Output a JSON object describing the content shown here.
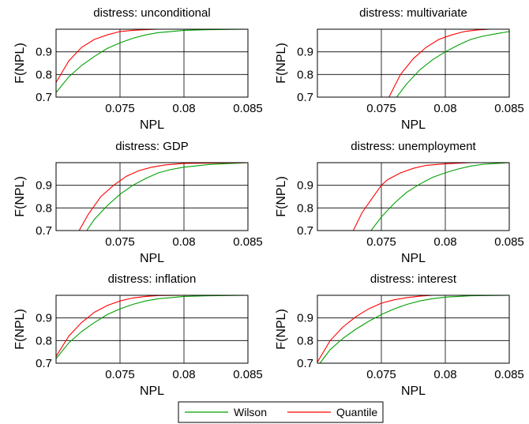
{
  "colors": {
    "wilson": "#00a000",
    "quantile": "#ff0000",
    "grid": "#000000",
    "frame": "#000000"
  },
  "legend": {
    "placement": "bottom-center",
    "items": [
      "Wilson",
      "Quantile"
    ]
  },
  "chart_data": [
    {
      "type": "line",
      "title": "distress: unconditional",
      "xlabel": "NPL",
      "ylabel": "F(NPL)",
      "xlim": [
        0.07,
        0.085
      ],
      "ylim": [
        0.7,
        1.0
      ],
      "xticks": [
        "0.075",
        "0.08",
        "0.085"
      ],
      "yticks": [
        "0.7",
        "0.8",
        "0.9"
      ],
      "grid": true,
      "series": [
        {
          "name": "Wilson",
          "x": [
            0.07,
            0.071,
            0.072,
            0.073,
            0.074,
            0.075,
            0.076,
            0.077,
            0.078,
            0.079,
            0.08,
            0.082,
            0.085
          ],
          "y": [
            0.72,
            0.79,
            0.84,
            0.88,
            0.915,
            0.94,
            0.96,
            0.975,
            0.985,
            0.99,
            0.995,
            0.998,
            1.0
          ]
        },
        {
          "name": "Quantile",
          "x": [
            0.07,
            0.071,
            0.072,
            0.073,
            0.074,
            0.075,
            0.076,
            0.077,
            0.078,
            0.079,
            0.08,
            0.085
          ],
          "y": [
            0.765,
            0.86,
            0.92,
            0.955,
            0.975,
            0.99,
            0.995,
            0.998,
            1.0,
            1.0,
            1.0,
            1.0
          ]
        }
      ]
    },
    {
      "type": "line",
      "title": "distress: multivariate",
      "xlabel": "NPL",
      "ylabel": "F(NPL)",
      "xlim": [
        0.07,
        0.085
      ],
      "ylim": [
        0.7,
        1.0
      ],
      "xticks": [
        "0.075",
        "0.08",
        "0.085"
      ],
      "yticks": [
        "0.7",
        "0.8",
        "0.9"
      ],
      "grid": true,
      "series": [
        {
          "name": "Wilson",
          "x": [
            0.0762,
            0.077,
            0.078,
            0.079,
            0.08,
            0.081,
            0.082,
            0.083,
            0.084,
            0.085
          ],
          "y": [
            0.7,
            0.76,
            0.82,
            0.865,
            0.9,
            0.93,
            0.955,
            0.97,
            0.98,
            0.99
          ]
        },
        {
          "name": "Quantile",
          "x": [
            0.0756,
            0.0765,
            0.0775,
            0.0785,
            0.0795,
            0.0805,
            0.0815,
            0.0825,
            0.0835,
            0.085
          ],
          "y": [
            0.7,
            0.8,
            0.87,
            0.92,
            0.955,
            0.975,
            0.99,
            0.997,
            1.0,
            1.0
          ]
        }
      ]
    },
    {
      "type": "line",
      "title": "distress: GDP",
      "xlabel": "NPL",
      "ylabel": "F(NPL)",
      "xlim": [
        0.07,
        0.085
      ],
      "ylim": [
        0.7,
        1.0
      ],
      "xticks": [
        "0.075",
        "0.08",
        "0.085"
      ],
      "yticks": [
        "0.7",
        "0.8",
        "0.9"
      ],
      "grid": true,
      "series": [
        {
          "name": "Wilson",
          "x": [
            0.0724,
            0.073,
            0.074,
            0.075,
            0.076,
            0.077,
            0.078,
            0.079,
            0.08,
            0.082,
            0.085
          ],
          "y": [
            0.7,
            0.75,
            0.81,
            0.86,
            0.9,
            0.93,
            0.955,
            0.97,
            0.98,
            0.992,
            1.0
          ]
        },
        {
          "name": "Quantile",
          "x": [
            0.0718,
            0.0725,
            0.0735,
            0.0745,
            0.0755,
            0.0765,
            0.0775,
            0.0785,
            0.08,
            0.085
          ],
          "y": [
            0.7,
            0.77,
            0.85,
            0.9,
            0.94,
            0.965,
            0.98,
            0.99,
            0.997,
            1.0
          ]
        }
      ]
    },
    {
      "type": "line",
      "title": "distress: unemployment",
      "xlabel": "NPL",
      "ylabel": "F(NPL)",
      "xlim": [
        0.07,
        0.085
      ],
      "ylim": [
        0.7,
        1.0
      ],
      "xticks": [
        "0.075",
        "0.08",
        "0.085"
      ],
      "yticks": [
        "0.7",
        "0.8",
        "0.9"
      ],
      "grid": true,
      "series": [
        {
          "name": "Wilson",
          "x": [
            0.0742,
            0.075,
            0.076,
            0.077,
            0.078,
            0.079,
            0.08,
            0.081,
            0.082,
            0.083,
            0.085
          ],
          "y": [
            0.7,
            0.76,
            0.82,
            0.87,
            0.905,
            0.935,
            0.955,
            0.972,
            0.985,
            0.993,
            1.0
          ]
        },
        {
          "name": "Quantile",
          "x": [
            0.0728,
            0.0735,
            0.0745,
            0.075,
            0.0755,
            0.0765,
            0.0775,
            0.0785,
            0.08,
            0.082,
            0.085
          ],
          "y": [
            0.7,
            0.78,
            0.86,
            0.9,
            0.925,
            0.955,
            0.975,
            0.988,
            0.995,
            1.0,
            1.0
          ]
        }
      ]
    },
    {
      "type": "line",
      "title": "distress: inflation",
      "xlabel": "NPL",
      "ylabel": "F(NPL)",
      "xlim": [
        0.07,
        0.085
      ],
      "ylim": [
        0.7,
        1.0
      ],
      "xticks": [
        "0.075",
        "0.08",
        "0.085"
      ],
      "yticks": [
        "0.7",
        "0.8",
        "0.9"
      ],
      "grid": true,
      "series": [
        {
          "name": "Wilson",
          "x": [
            0.07,
            0.071,
            0.072,
            0.073,
            0.074,
            0.075,
            0.076,
            0.077,
            0.078,
            0.079,
            0.08,
            0.082,
            0.085
          ],
          "y": [
            0.72,
            0.79,
            0.84,
            0.88,
            0.915,
            0.94,
            0.96,
            0.975,
            0.985,
            0.99,
            0.995,
            0.998,
            1.0
          ]
        },
        {
          "name": "Quantile",
          "x": [
            0.07,
            0.071,
            0.072,
            0.073,
            0.074,
            0.075,
            0.076,
            0.077,
            0.078,
            0.08,
            0.085
          ],
          "y": [
            0.73,
            0.82,
            0.88,
            0.925,
            0.955,
            0.975,
            0.988,
            0.995,
            0.999,
            1.0,
            1.0
          ]
        }
      ]
    },
    {
      "type": "line",
      "title": "distress: interest",
      "xlabel": "NPL",
      "ylabel": "F(NPL)",
      "xlim": [
        0.07,
        0.085
      ],
      "ylim": [
        0.7,
        1.0
      ],
      "xticks": [
        "0.075",
        "0.08",
        "0.085"
      ],
      "yticks": [
        "0.7",
        "0.8",
        "0.9"
      ],
      "grid": true,
      "series": [
        {
          "name": "Wilson",
          "x": [
            0.0702,
            0.071,
            0.072,
            0.073,
            0.074,
            0.075,
            0.076,
            0.077,
            0.078,
            0.079,
            0.08,
            0.082,
            0.085
          ],
          "y": [
            0.7,
            0.76,
            0.81,
            0.85,
            0.885,
            0.915,
            0.94,
            0.96,
            0.975,
            0.985,
            0.992,
            0.998,
            1.0
          ]
        },
        {
          "name": "Quantile",
          "x": [
            0.07,
            0.071,
            0.072,
            0.073,
            0.074,
            0.075,
            0.076,
            0.077,
            0.078,
            0.079,
            0.08,
            0.085
          ],
          "y": [
            0.705,
            0.8,
            0.86,
            0.905,
            0.94,
            0.965,
            0.98,
            0.99,
            0.996,
            1.0,
            1.0,
            1.0
          ]
        }
      ]
    }
  ]
}
